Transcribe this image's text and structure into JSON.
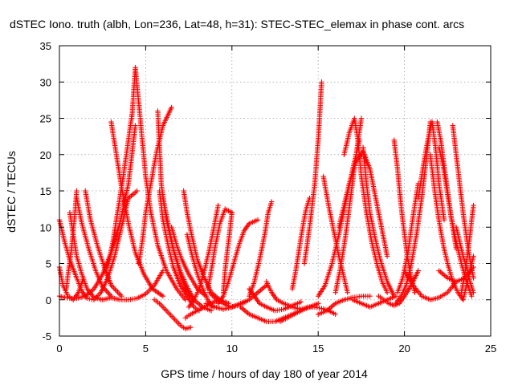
{
  "chart_data": {
    "type": "scatter",
    "title": "dSTEC Iono. truth (albh, Lon=236, Lat=48, h=31): STEC-STEC_elemax in phase cont. arcs",
    "xlabel": "GPS time / hours of day 180 of year 2014",
    "ylabel": "dSTEC  / TECUs",
    "xlim": [
      0,
      25
    ],
    "ylim": [
      -5,
      35
    ],
    "xticks": [
      0,
      5,
      10,
      15,
      20,
      25
    ],
    "yticks": [
      -5,
      0,
      5,
      10,
      15,
      20,
      25,
      30,
      35
    ],
    "grid": true,
    "legend": "none",
    "marker": "plus",
    "color": "#ff0000",
    "series": [
      {
        "x": [
          0.0,
          0.3,
          0.6,
          1.0,
          1.3,
          1.6,
          2.0
        ],
        "y": [
          11.0,
          8.0,
          5.5,
          3.0,
          1.2,
          0.2,
          0.0
        ]
      },
      {
        "x": [
          0.0,
          0.3,
          0.6,
          1.0,
          1.5,
          2.0,
          2.5,
          3.0,
          3.5,
          4.0,
          4.4
        ],
        "y": [
          0.5,
          0.3,
          0.2,
          0.2,
          0.5,
          1.5,
          3.5,
          6.5,
          10.5,
          16.0,
          24.0
        ]
      },
      {
        "x": [
          0.0,
          0.2,
          0.5,
          0.8,
          1.1,
          1.4
        ],
        "y": [
          4.5,
          2.0,
          0.5,
          0.0,
          1.0,
          3.0
        ]
      },
      {
        "x": [
          0.4,
          0.5,
          0.7,
          0.9,
          1.0
        ],
        "y": [
          1.5,
          3.5,
          7.0,
          12.0,
          15.0
        ]
      },
      {
        "x": [
          0.6,
          0.8,
          1.0,
          1.3,
          1.6,
          2.0,
          2.5,
          3.0
        ],
        "y": [
          12.0,
          9.0,
          6.0,
          3.5,
          1.5,
          0.3,
          0.0,
          0.3
        ]
      },
      {
        "x": [
          1.0,
          1.3,
          1.7,
          2.1,
          2.5,
          3.0
        ],
        "y": [
          14.0,
          10.5,
          7.0,
          4.0,
          1.8,
          0.5
        ]
      },
      {
        "x": [
          1.5,
          1.8,
          2.2,
          2.6,
          3.0,
          3.6
        ],
        "y": [
          15.0,
          11.0,
          7.5,
          4.5,
          2.0,
          0.5
        ]
      },
      {
        "x": [
          2.0,
          2.4,
          2.8,
          3.2,
          3.6,
          4.0,
          4.5
        ],
        "y": [
          0.0,
          1.0,
          3.0,
          6.0,
          10.0,
          14.0,
          15.0
        ]
      },
      {
        "x": [
          2.8,
          3.1,
          3.4,
          3.7,
          4.0,
          4.2
        ],
        "y": [
          4.5,
          8.0,
          12.5,
          17.0,
          22.0,
          25.5
        ]
      },
      {
        "x": [
          3.0,
          3.3,
          3.6,
          4.0,
          4.4,
          4.9,
          5.4,
          6.0
        ],
        "y": [
          24.5,
          20.0,
          15.5,
          10.5,
          6.5,
          3.5,
          1.5,
          0.5
        ]
      },
      {
        "x": [
          3.0,
          3.5,
          4.0,
          4.5,
          5.0,
          5.5,
          6.0
        ],
        "y": [
          0.3,
          0.0,
          0.0,
          0.2,
          0.8,
          2.0,
          4.0
        ]
      },
      {
        "x": [
          4.2,
          4.4,
          4.6,
          4.8,
          5.0,
          5.3,
          5.7,
          6.2,
          6.8,
          7.3
        ],
        "y": [
          25.0,
          32.0,
          27.0,
          22.0,
          17.0,
          12.0,
          7.5,
          4.0,
          1.5,
          0.0
        ]
      },
      {
        "x": [
          4.6,
          4.8,
          5.0,
          5.3,
          5.6,
          6.0,
          6.5
        ],
        "y": [
          5.0,
          8.0,
          12.0,
          16.0,
          20.0,
          24.0,
          26.5
        ]
      },
      {
        "x": [
          5.7,
          5.8,
          5.9,
          6.2,
          6.6,
          7.0,
          7.4,
          7.8
        ],
        "y": [
          26.0,
          21.0,
          16.0,
          11.0,
          7.0,
          3.5,
          1.0,
          0.0
        ]
      },
      {
        "x": [
          5.8,
          6.0,
          6.3,
          6.6,
          7.0,
          7.4,
          7.8,
          8.1
        ],
        "y": [
          15.0,
          11.0,
          7.5,
          4.5,
          2.0,
          0.5,
          -1.0,
          -1.5
        ]
      },
      {
        "x": [
          5.5,
          5.8,
          6.2,
          6.6,
          7.0,
          7.3,
          7.6
        ],
        "y": [
          0.0,
          -0.5,
          -1.5,
          -2.5,
          -3.5,
          -4.0,
          -3.8
        ]
      },
      {
        "x": [
          6.0,
          6.3,
          6.6,
          7.0,
          7.4,
          7.8,
          8.3,
          8.8
        ],
        "y": [
          14.0,
          10.5,
          7.0,
          4.0,
          1.8,
          0.0,
          -1.0,
          -1.5
        ]
      },
      {
        "x": [
          6.5,
          6.8,
          7.1,
          7.5,
          8.0,
          8.5
        ],
        "y": [
          10.0,
          7.5,
          5.5,
          3.5,
          1.5,
          0.5
        ]
      },
      {
        "x": [
          7.2,
          7.4,
          7.7,
          8.0,
          8.4,
          8.8,
          9.3,
          9.8
        ],
        "y": [
          15.0,
          12.0,
          8.5,
          5.5,
          3.0,
          1.0,
          0.0,
          -0.5
        ]
      },
      {
        "x": [
          7.4,
          7.7,
          8.0,
          8.3,
          8.6,
          8.9
        ],
        "y": [
          9.0,
          6.0,
          3.5,
          1.5,
          0.0,
          -1.0
        ]
      },
      {
        "x": [
          7.3,
          7.6,
          8.0,
          8.4,
          8.8,
          9.2
        ],
        "y": [
          -2.5,
          -2.0,
          -1.5,
          -1.0,
          -0.5,
          0.0
        ]
      },
      {
        "x": [
          7.5,
          7.8,
          8.1,
          8.4,
          8.7,
          9.0,
          9.2
        ],
        "y": [
          -1.0,
          0.0,
          1.5,
          4.0,
          7.0,
          10.5,
          13.0
        ]
      },
      {
        "x": [
          8.6,
          8.8,
          9.0,
          9.3,
          9.6,
          10.0
        ],
        "y": [
          1.5,
          4.0,
          7.0,
          10.5,
          12.5,
          12.0
        ]
      },
      {
        "x": [
          8.5,
          9.0,
          9.5,
          10.0,
          10.5,
          11.0,
          11.5,
          12.0
        ],
        "y": [
          -0.5,
          -1.0,
          -1.3,
          -1.0,
          -0.5,
          0.0,
          1.0,
          2.0
        ]
      },
      {
        "x": [
          8.7,
          9.1,
          9.5,
          9.9,
          10.3,
          10.8
        ],
        "y": [
          1.0,
          0.0,
          -0.5,
          -1.0,
          -0.8,
          -0.3
        ]
      },
      {
        "x": [
          9.2,
          9.5,
          9.8,
          10.1,
          10.4,
          10.7,
          11.0,
          11.5
        ],
        "y": [
          -0.5,
          0.5,
          2.5,
          5.0,
          7.5,
          9.5,
          10.5,
          11.0
        ]
      },
      {
        "x": [
          9.5,
          9.6,
          9.8,
          10.0
        ],
        "y": [
          1.0,
          4.0,
          8.0,
          12.0
        ]
      },
      {
        "x": [
          10.5,
          11.0,
          11.5,
          12.0,
          12.5,
          13.0,
          13.5,
          14.0,
          14.5
        ],
        "y": [
          -1.0,
          -2.0,
          -2.5,
          -3.0,
          -3.0,
          -2.5,
          -2.0,
          -1.5,
          -1.0
        ]
      },
      {
        "x": [
          11.0,
          11.3,
          11.6,
          11.9,
          12.1,
          12.3
        ],
        "y": [
          0.5,
          2.5,
          5.5,
          9.0,
          12.0,
          13.5
        ]
      },
      {
        "x": [
          11.0,
          11.3,
          11.6,
          12.0,
          12.5,
          13.0,
          13.5,
          14.0
        ],
        "y": [
          1.5,
          0.5,
          -0.5,
          -1.0,
          -1.5,
          -1.3,
          -0.8,
          -0.3
        ]
      },
      {
        "x": [
          12.0,
          12.3,
          12.6,
          13.0,
          13.5,
          14.0,
          14.5,
          15.0
        ],
        "y": [
          2.5,
          1.0,
          0.0,
          -0.5,
          -1.0,
          -1.3,
          -1.0,
          -0.5
        ]
      },
      {
        "x": [
          12.8,
          13.2,
          13.6,
          14.0,
          14.4,
          14.8,
          15.2,
          15.6,
          16.0
        ],
        "y": [
          -3.0,
          -2.5,
          -2.0,
          -1.5,
          -1.0,
          -1.0,
          -1.2,
          -1.5,
          -2.0
        ]
      },
      {
        "x": [
          13.5,
          13.7,
          13.9,
          14.1,
          14.3,
          14.5
        ],
        "y": [
          1.5,
          4.0,
          7.0,
          10.0,
          12.5,
          14.0
        ]
      },
      {
        "x": [
          14.2,
          14.5,
          14.8,
          15.0,
          15.2
        ],
        "y": [
          5.0,
          10.0,
          16.0,
          22.0,
          30.0
        ]
      },
      {
        "x": [
          15.0,
          15.4,
          15.8,
          16.2,
          16.6,
          17.0,
          17.4
        ],
        "y": [
          0.5,
          2.0,
          5.0,
          9.0,
          13.5,
          18.0,
          22.0
        ]
      },
      {
        "x": [
          15.3,
          15.6,
          15.9,
          16.2,
          16.5,
          16.7
        ],
        "y": [
          17.0,
          13.0,
          9.5,
          6.0,
          3.0,
          1.0
        ]
      },
      {
        "x": [
          15.0,
          15.5,
          16.0,
          16.5,
          17.0,
          17.5,
          18.0
        ],
        "y": [
          -2.0,
          -1.5,
          -0.5,
          0.0,
          0.3,
          0.5,
          0.5
        ]
      },
      {
        "x": [
          16.0,
          16.3,
          16.6,
          16.9,
          17.2,
          17.5
        ],
        "y": [
          1.0,
          4.5,
          9.0,
          14.5,
          20.0,
          25.0
        ]
      },
      {
        "x": [
          16.2,
          16.5,
          16.8,
          17.2,
          17.6,
          18.0,
          18.5,
          19.0
        ],
        "y": [
          10.0,
          13.0,
          16.0,
          19.0,
          20.5,
          18.0,
          12.0,
          6.0
        ]
      },
      {
        "x": [
          16.5,
          16.8,
          17.1,
          17.3,
          17.5,
          17.8,
          18.1,
          18.4,
          18.7,
          19.0
        ],
        "y": [
          20.0,
          23.0,
          25.0,
          22.0,
          17.0,
          12.0,
          8.0,
          5.0,
          2.5,
          1.0
        ]
      },
      {
        "x": [
          17.0,
          17.5,
          18.0,
          18.5,
          19.0,
          19.5
        ],
        "y": [
          0.0,
          -0.5,
          -1.0,
          -0.5,
          0.0,
          0.5
        ]
      },
      {
        "x": [
          17.6,
          17.8,
          18.0,
          18.3,
          18.6,
          19.0,
          19.4
        ],
        "y": [
          21.0,
          16.0,
          12.0,
          8.5,
          5.5,
          2.5,
          0.5
        ]
      },
      {
        "x": [
          18.5,
          18.8,
          19.1,
          19.4,
          19.7,
          20.0,
          20.4,
          20.8
        ],
        "y": [
          0.5,
          0.0,
          -0.5,
          -0.8,
          -0.5,
          0.5,
          2.0,
          4.0
        ]
      },
      {
        "x": [
          19.4,
          19.6,
          19.8,
          20.0,
          20.2,
          20.4,
          20.6
        ],
        "y": [
          22.0,
          18.0,
          13.0,
          9.0,
          5.5,
          3.0,
          1.0
        ]
      },
      {
        "x": [
          19.6,
          19.9,
          20.2,
          20.5,
          20.8
        ],
        "y": [
          1.0,
          3.0,
          6.5,
          11.5,
          16.0
        ]
      },
      {
        "x": [
          19.5,
          19.8,
          20.1,
          20.4,
          20.7,
          21.0,
          21.3,
          21.5
        ],
        "y": [
          -0.5,
          0.5,
          2.0,
          5.0,
          9.0,
          14.0,
          20.0,
          24.5
        ]
      },
      {
        "x": [
          20.0,
          20.5,
          21.0,
          21.5,
          22.0,
          22.5,
          23.0
        ],
        "y": [
          4.0,
          2.0,
          0.5,
          0.0,
          0.3,
          1.0,
          2.5
        ]
      },
      {
        "x": [
          20.8,
          21.0,
          21.2,
          21.4,
          21.6,
          21.8,
          22.0,
          22.3
        ],
        "y": [
          14.0,
          17.0,
          20.0,
          22.5,
          24.5,
          21.0,
          16.0,
          11.0
        ]
      },
      {
        "x": [
          21.5,
          21.7,
          21.9,
          22.1,
          22.3,
          22.5,
          22.8,
          23.1,
          23.4
        ],
        "y": [
          20.0,
          16.0,
          12.5,
          9.5,
          7.0,
          5.0,
          2.5,
          1.0,
          0.0
        ]
      },
      {
        "x": [
          21.9,
          22.1,
          22.3,
          22.5,
          22.7,
          23.0,
          23.3,
          23.6,
          23.9
        ],
        "y": [
          24.5,
          22.0,
          18.5,
          15.0,
          11.5,
          8.0,
          5.0,
          2.5,
          0.5
        ]
      },
      {
        "x": [
          22.0,
          22.2,
          22.4,
          22.6,
          22.8,
          23.0
        ],
        "y": [
          21.0,
          19.0,
          16.0,
          13.0,
          10.0,
          7.0
        ]
      },
      {
        "x": [
          22.8,
          23.0,
          23.2,
          23.4,
          23.6,
          23.8,
          24.0
        ],
        "y": [
          24.0,
          20.0,
          16.0,
          12.0,
          8.5,
          5.5,
          3.0
        ]
      },
      {
        "x": [
          23.0,
          23.2,
          23.4,
          23.6,
          23.8,
          24.0
        ],
        "y": [
          10.0,
          8.0,
          6.0,
          4.5,
          2.5,
          1.0
        ]
      },
      {
        "x": [
          23.3,
          23.5,
          23.7,
          23.9,
          24.0
        ],
        "y": [
          1.0,
          3.5,
          7.0,
          11.0,
          13.0
        ]
      },
      {
        "x": [
          23.4,
          23.6,
          23.8,
          24.0
        ],
        "y": [
          0.0,
          2.0,
          4.0,
          6.0
        ]
      },
      {
        "x": [
          22.0,
          22.5,
          23.0,
          23.5,
          24.0
        ],
        "y": [
          4.0,
          3.0,
          2.5,
          3.0,
          4.5
        ]
      }
    ]
  }
}
